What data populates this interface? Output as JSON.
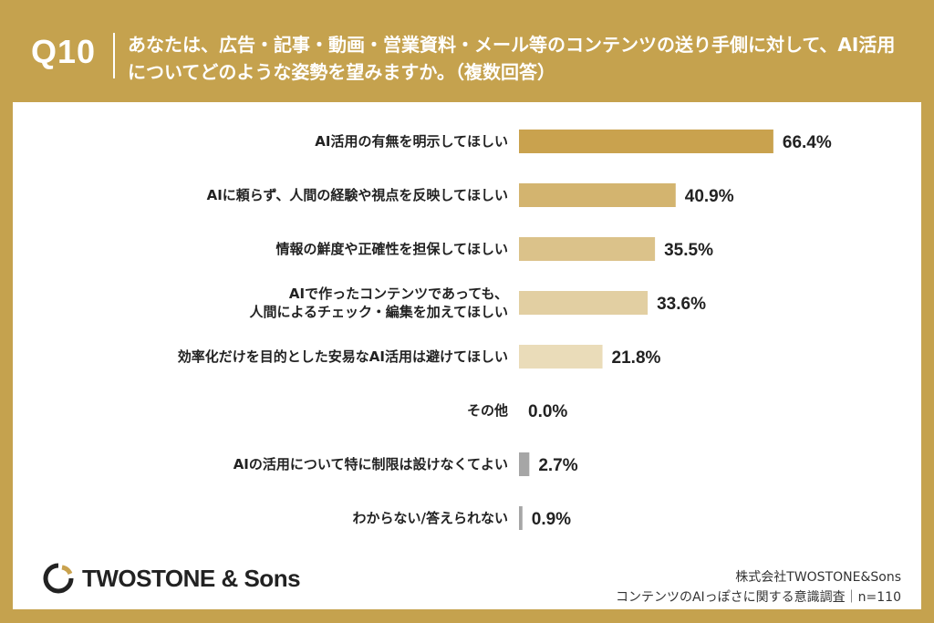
{
  "header": {
    "question_number": "Q10",
    "question_text": "あなたは、広告・記事・動画・営業資料・メール等のコンテンツの送り手側に対して、AI活用についてどのような姿勢を望みますか。（複数回答）"
  },
  "footer": {
    "logo_text": "TWOSTONE & Sons",
    "company": "株式会社TWOSTONE&Sons",
    "survey": "コンテンツのAIっぽさに関する意識調査｜n=110"
  },
  "colors": {
    "background": "#c5a24e",
    "bar_1": "#c9a24e",
    "bar_2": "#d3b46f",
    "bar_3": "#dbc28a",
    "bar_4": "#e2cfa2",
    "bar_5": "#eadcb9",
    "bar_gray": "#a6a6a6"
  },
  "chart_data": {
    "type": "bar",
    "orientation": "horizontal",
    "categories": [
      "AI活用の有無を明示してほしい",
      "AIに頼らず、人間の経験や視点を反映してほしい",
      "情報の鮮度や正確性を担保してほしい",
      "AIで作ったコンテンツであっても、\n人間によるチェック・編集を加えてほしい",
      "効率化だけを目的とした安易なAI活用は避けてほしい",
      "その他",
      "AIの活用について特に制限は設けなくてよい",
      "わからない/答えられない"
    ],
    "values": [
      66.4,
      40.9,
      35.5,
      33.6,
      21.8,
      0.0,
      2.7,
      0.9
    ],
    "labels": [
      "66.4%",
      "40.9%",
      "35.5%",
      "33.6%",
      "21.8%",
      "0.0%",
      "2.7%",
      "0.9%"
    ],
    "unit": "%",
    "xlim": [
      0,
      100
    ],
    "grid": false,
    "legend": "none"
  }
}
